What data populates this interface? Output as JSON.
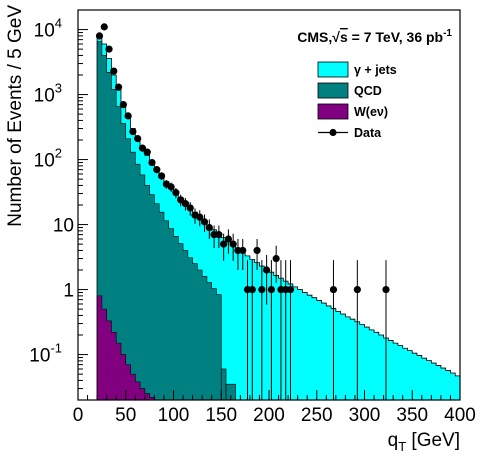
{
  "chart_data": {
    "type": "histogram",
    "header": "CMS, √s = 7 TeV, 36 pb⁻¹",
    "header_parts": {
      "prefix": "CMS,",
      "sqrt": "√",
      "s_rest": "s = 7 TeV, 36 pb",
      "superscript": "-1"
    },
    "xlabel": "q",
    "xlabel_subscript": "T",
    "xlabel_unit": " [GeV]",
    "ylabel": "Number of Events / 5 GeV",
    "xlim": [
      0,
      400
    ],
    "ylim": [
      0.02,
      20000
    ],
    "y_log_scale": true,
    "bin_width": 5,
    "x_ticks": [
      {
        "value": 0,
        "label": "0"
      },
      {
        "value": 50,
        "label": "50"
      },
      {
        "value": 100,
        "label": "100"
      },
      {
        "value": 150,
        "label": "150"
      },
      {
        "value": 200,
        "label": "200"
      },
      {
        "value": 250,
        "label": "250"
      },
      {
        "value": 300,
        "label": "300"
      },
      {
        "value": 350,
        "label": "350"
      },
      {
        "value": 400,
        "label": "400"
      }
    ],
    "y_ticks": [
      {
        "value": 0.1,
        "base": "10",
        "exp": "-1"
      },
      {
        "value": 1,
        "base": "1",
        "exp": ""
      },
      {
        "value": 10,
        "base": "10",
        "exp": ""
      },
      {
        "value": 100,
        "base": "10",
        "exp": "2"
      },
      {
        "value": 1000,
        "base": "10",
        "exp": "3"
      },
      {
        "value": 10000,
        "base": "10",
        "exp": "4"
      }
    ],
    "legend": [
      {
        "label": "γ + jets",
        "color": "#00ffff",
        "kind": "fill"
      },
      {
        "label": "QCD",
        "color": "#008080",
        "kind": "fill"
      },
      {
        "label": "W(eν)",
        "color": "#800080",
        "kind": "fill"
      },
      {
        "label": "Data",
        "color": "#000000",
        "kind": "marker"
      }
    ],
    "stack": {
      "order": [
        "W(eν)",
        "QCD",
        "γ + jets"
      ],
      "total_edges": [
        20,
        400
      ],
      "total_values": [
        8000,
        6000,
        3600,
        2000,
        1200,
        700,
        440,
        300,
        210,
        155,
        116,
        90,
        72,
        57,
        46,
        38,
        31,
        26,
        22,
        18.5,
        15.5,
        13,
        11,
        9.6,
        8.3,
        7.2,
        6.3,
        5.5,
        4.8,
        4.2,
        3.7,
        3.3,
        2.9,
        2.6,
        2.3,
        2.05,
        1.85,
        1.65,
        1.5,
        1.35,
        1.22,
        1.1,
        1.0,
        0.9,
        0.82,
        0.75,
        0.68,
        0.62,
        0.56,
        0.51,
        0.46,
        0.42,
        0.38,
        0.35,
        0.32,
        0.29,
        0.265,
        0.24,
        0.22,
        0.2,
        0.18,
        0.165,
        0.15,
        0.138,
        0.125,
        0.115,
        0.105,
        0.097,
        0.088,
        0.081,
        0.074,
        0.068,
        0.062,
        0.057,
        0.052,
        0.047
      ],
      "qcd_cum_edges": [
        20,
        150
      ],
      "qcd_cum_values": [
        6500,
        4000,
        2200,
        1200,
        650,
        360,
        210,
        130,
        85,
        58,
        40,
        29,
        21,
        15.5,
        11.5,
        8.7,
        6.6,
        5.1,
        4.0,
        3.1,
        2.5,
        2.0,
        1.6,
        1.28,
        1.03,
        0.84
      ],
      "qcd_cum_tail": [
        {
          "x1": 150,
          "x2": 155,
          "y": 0.06
        },
        {
          "x1": 155,
          "x2": 165,
          "y": 0.035
        }
      ],
      "w_edges": [
        20,
        80
      ],
      "w_values": [
        0.8,
        0.5,
        0.33,
        0.22,
        0.15,
        0.1,
        0.07,
        0.05,
        0.038,
        0.03,
        0.025,
        0.022
      ]
    },
    "data_points": [
      {
        "x": 22.5,
        "y": 8000
      },
      {
        "x": 27.5,
        "y": 11000
      },
      {
        "x": 32.5,
        "y": 5000
      },
      {
        "x": 37.5,
        "y": 2300
      },
      {
        "x": 42.5,
        "y": 1300
      },
      {
        "x": 47.5,
        "y": 700
      },
      {
        "x": 52.5,
        "y": 470
      },
      {
        "x": 57.5,
        "y": 270
      },
      {
        "x": 62.5,
        "y": 210
      },
      {
        "x": 67.5,
        "y": 150
      },
      {
        "x": 72.5,
        "y": 130
      },
      {
        "x": 77.5,
        "y": 90
      },
      {
        "x": 82.5,
        "y": 70
      },
      {
        "x": 87.5,
        "y": 56
      },
      {
        "x": 92.5,
        "y": 42
      },
      {
        "x": 97.5,
        "y": 38
      },
      {
        "x": 102.5,
        "y": 31
      },
      {
        "x": 107.5,
        "y": 24
      },
      {
        "x": 112.5,
        "y": 21
      },
      {
        "x": 117.5,
        "y": 18
      },
      {
        "x": 122.5,
        "y": 14
      },
      {
        "x": 127.5,
        "y": 13
      },
      {
        "x": 132.5,
        "y": 11
      },
      {
        "x": 137.5,
        "y": 9
      },
      {
        "x": 142.5,
        "y": 7
      },
      {
        "x": 147.5,
        "y": 7
      },
      {
        "x": 152.5,
        "y": 5
      },
      {
        "x": 157.5,
        "y": 6
      },
      {
        "x": 162.5,
        "y": 5
      },
      {
        "x": 167.5,
        "y": 4
      },
      {
        "x": 172.5,
        "y": 4
      },
      {
        "x": 177.5,
        "y": 1
      },
      {
        "x": 182.5,
        "y": 1
      },
      {
        "x": 187.5,
        "y": 4
      },
      {
        "x": 192.5,
        "y": 1
      },
      {
        "x": 197.5,
        "y": 2
      },
      {
        "x": 202.5,
        "y": 1
      },
      {
        "x": 207.5,
        "y": 3
      },
      {
        "x": 212.5,
        "y": 1
      },
      {
        "x": 217.5,
        "y": 1
      },
      {
        "x": 222.5,
        "y": 1
      },
      {
        "x": 267.5,
        "y": 1
      },
      {
        "x": 292.5,
        "y": 1
      },
      {
        "x": 322.5,
        "y": 1
      }
    ]
  }
}
